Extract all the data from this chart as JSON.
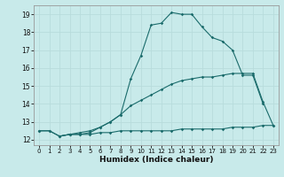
{
  "xlabel": "Humidex (Indice chaleur)",
  "bg_color": "#c8eaea",
  "grid_color": "#b8dcdc",
  "line_color": "#1a6b6b",
  "xlim": [
    -0.5,
    23.5
  ],
  "ylim": [
    11.7,
    19.5
  ],
  "yticks": [
    12,
    13,
    14,
    15,
    16,
    17,
    18,
    19
  ],
  "xticks": [
    0,
    1,
    2,
    3,
    4,
    5,
    6,
    7,
    8,
    9,
    10,
    11,
    12,
    13,
    14,
    15,
    16,
    17,
    18,
    19,
    20,
    21,
    22,
    23
  ],
  "line1_x": [
    0,
    1,
    2,
    3,
    4,
    5,
    6,
    7,
    8,
    9,
    10,
    11,
    12,
    13,
    14,
    15,
    16,
    17,
    18,
    19,
    20,
    21,
    22,
    23
  ],
  "line1_y": [
    12.5,
    12.5,
    12.2,
    12.3,
    12.3,
    12.3,
    12.4,
    12.4,
    12.5,
    12.5,
    12.5,
    12.5,
    12.5,
    12.5,
    12.6,
    12.6,
    12.6,
    12.6,
    12.6,
    12.7,
    12.7,
    12.7,
    12.8,
    12.8
  ],
  "line2_x": [
    0,
    1,
    2,
    3,
    4,
    5,
    6,
    7,
    8,
    9,
    10,
    11,
    12,
    13,
    14,
    15,
    16,
    17,
    18,
    19,
    20,
    21,
    22,
    23
  ],
  "line2_y": [
    12.5,
    12.5,
    12.2,
    12.3,
    12.4,
    12.5,
    12.7,
    13.0,
    13.4,
    13.9,
    14.2,
    14.5,
    14.8,
    15.1,
    15.3,
    15.4,
    15.5,
    15.5,
    15.6,
    15.7,
    15.7,
    15.7,
    14.1,
    12.8
  ],
  "line3_x": [
    2,
    3,
    4,
    5,
    6,
    7,
    8,
    9,
    10,
    11,
    12,
    13,
    14,
    15,
    16,
    17,
    18,
    19,
    20,
    21,
    22
  ],
  "line3_y": [
    12.2,
    12.3,
    12.3,
    12.4,
    12.7,
    13.0,
    13.4,
    15.4,
    16.7,
    18.4,
    18.5,
    19.1,
    19.0,
    19.0,
    18.3,
    17.7,
    17.5,
    17.0,
    15.6,
    15.6,
    14.0
  ]
}
